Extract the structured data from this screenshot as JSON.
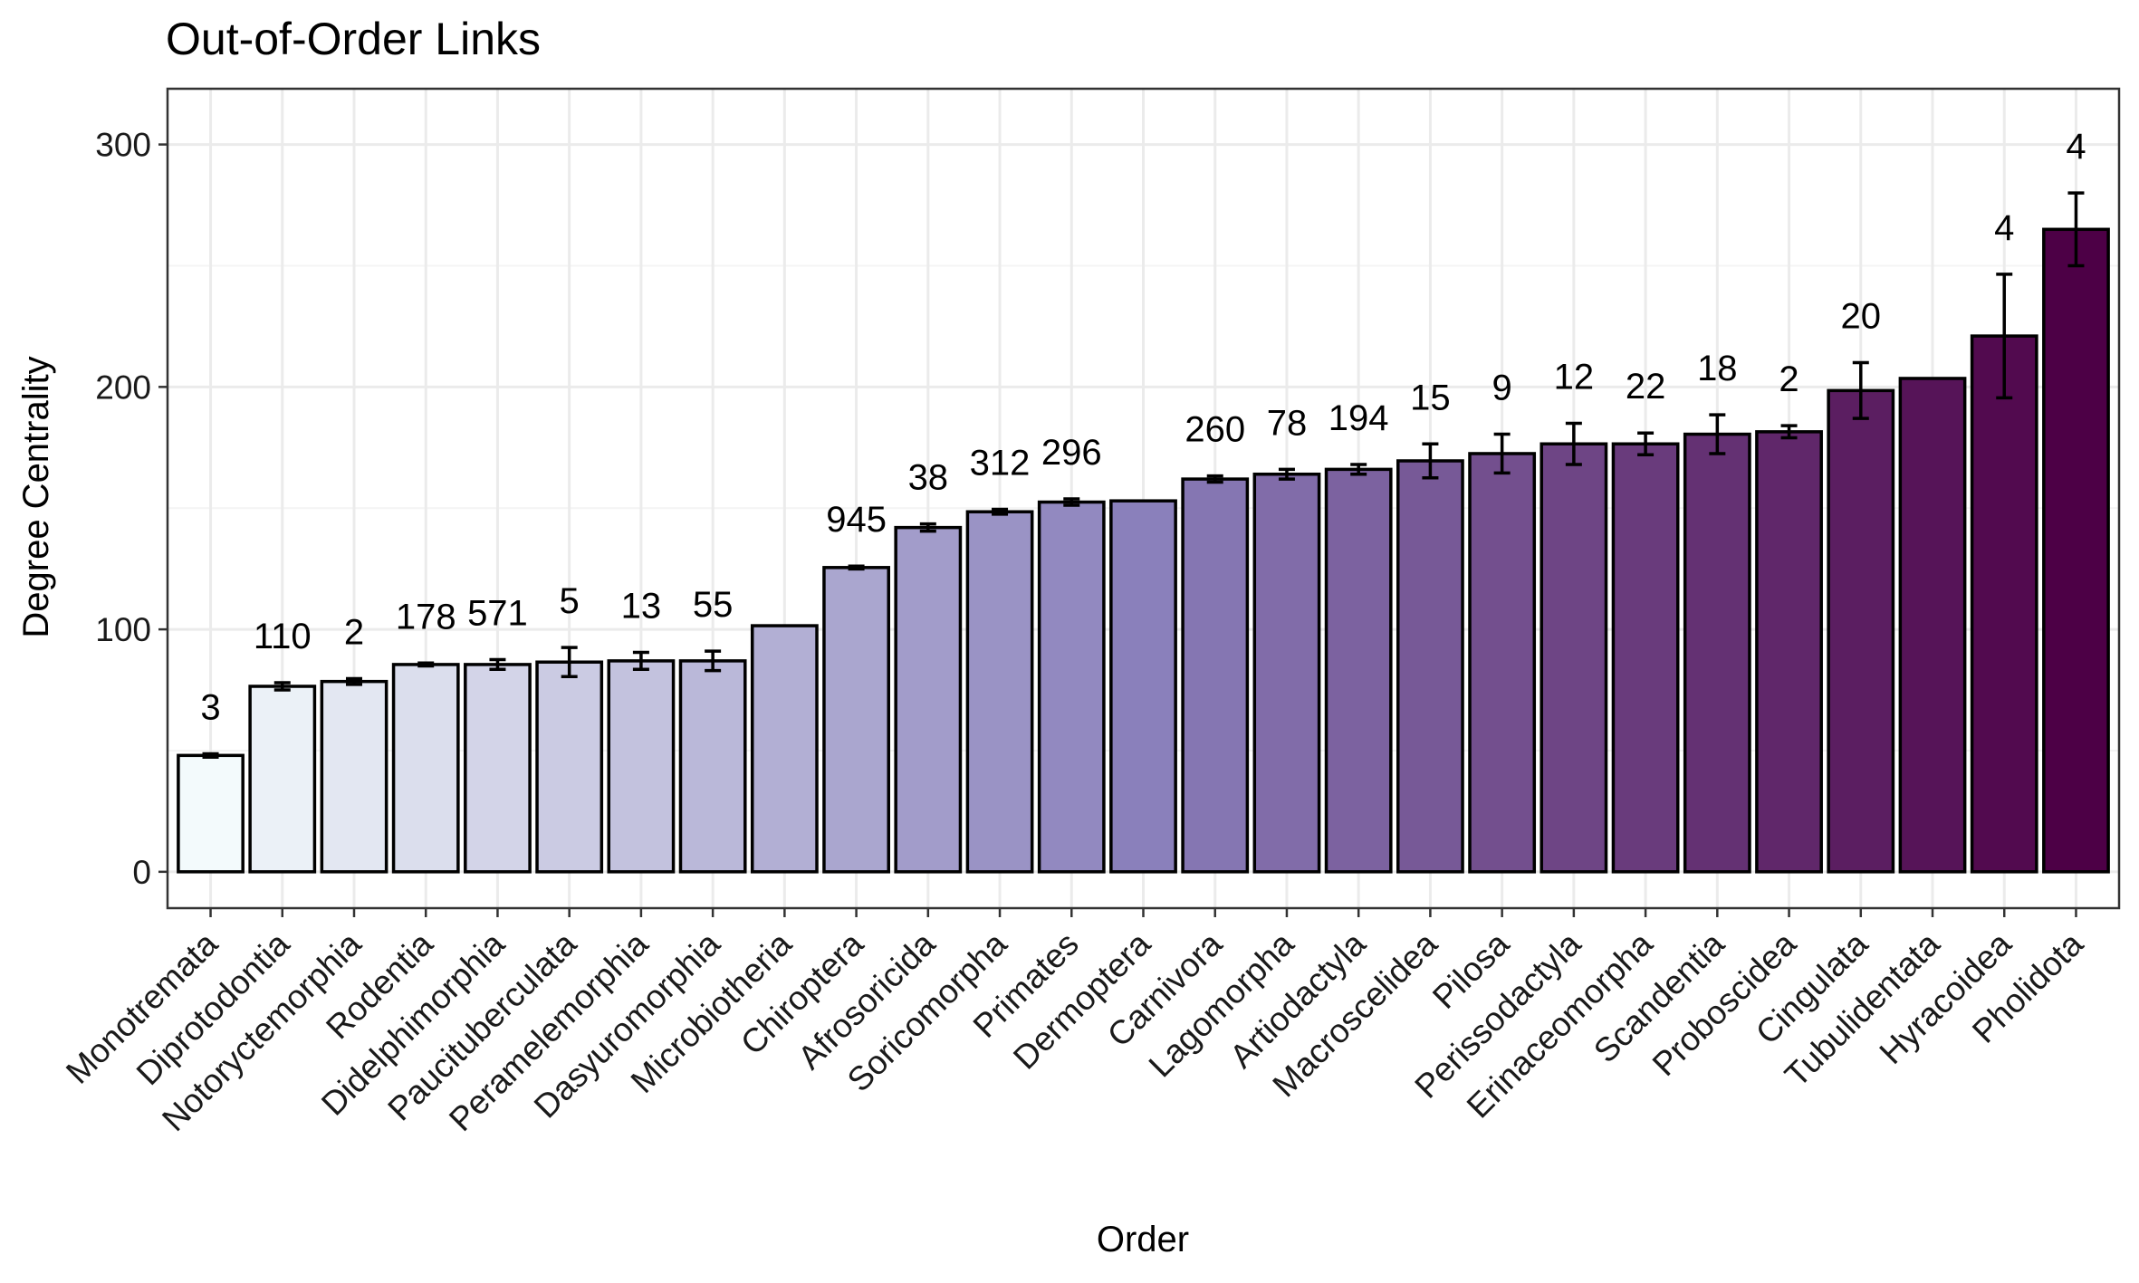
{
  "chart_data": {
    "type": "bar",
    "title": "Out-of-Order Links",
    "xlabel": "Order",
    "ylabel": "Degree Centrality",
    "ylim": [
      -15,
      323
    ],
    "yticks": [
      0,
      100,
      200,
      300
    ],
    "grid": true,
    "legend": "none",
    "colors": {
      "low": "#f3fafc",
      "mid": "#8a80bb",
      "high": "#4d0046"
    },
    "categories": [
      "Monotremata",
      "Diprotodontia",
      "Notoryctemorphia",
      "Rodentia",
      "Didelphimorphia",
      "Paucituberculata",
      "Peramelemorphia",
      "Dasyuromorphia",
      "Microbiotheria",
      "Chiroptera",
      "Afrosoricida",
      "Soricomorpha",
      "Primates",
      "Dermoptera",
      "Carnivora",
      "Lagomorpha",
      "Artiodactyla",
      "Macroscelidea",
      "Pilosa",
      "Perissodactyla",
      "Erinaceomorpha",
      "Scandentia",
      "Proboscidea",
      "Cingulata",
      "Tubulidentata",
      "Hyracoidea",
      "Pholidota"
    ],
    "values": [
      48,
      76.5,
      78.5,
      85.5,
      85.5,
      86.5,
      87,
      87,
      101.5,
      125.5,
      142,
      148.5,
      152.5,
      153,
      162,
      164,
      166,
      169.5,
      172.5,
      176.5,
      176.5,
      180.5,
      181.5,
      198.5,
      203.5,
      221,
      265
    ],
    "errors": [
      0.7,
      1.5,
      1.2,
      0.6,
      2,
      6,
      3.5,
      4,
      0,
      0.6,
      1.5,
      1,
      1.3,
      0,
      1.3,
      2,
      2,
      7,
      8,
      8.5,
      4.5,
      8,
      2.5,
      11.5,
      0,
      25.5,
      15
    ],
    "counts": [
      "3",
      "110",
      "2",
      "178",
      "571",
      "5",
      "13",
      "55",
      "",
      "945",
      "38",
      "312",
      "296",
      "",
      "260",
      "78",
      "194",
      "15",
      "9",
      "12",
      "22",
      "18",
      "2",
      "20",
      "",
      "4",
      "4"
    ]
  }
}
